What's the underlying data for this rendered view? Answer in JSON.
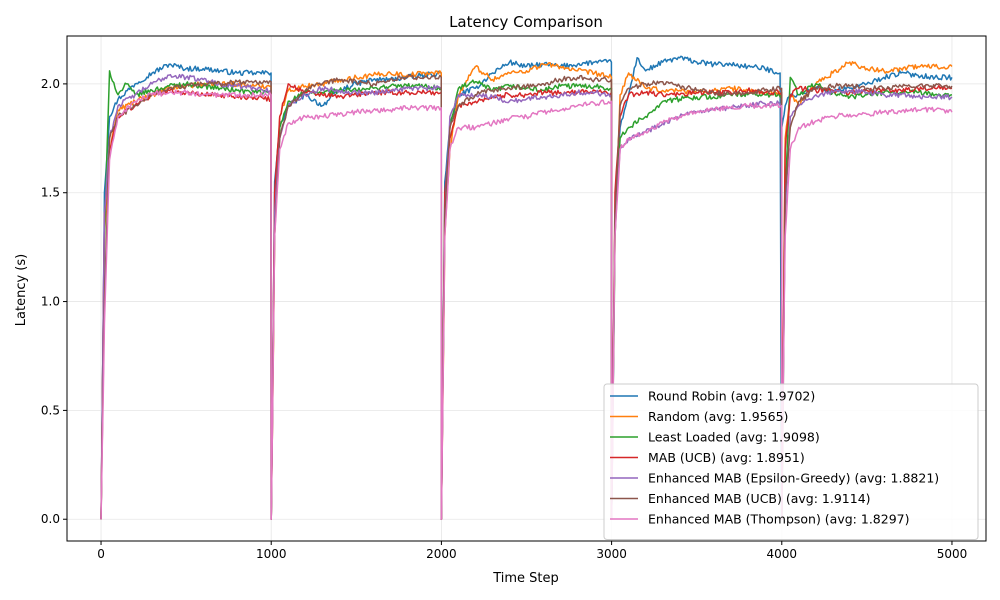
{
  "chart_data": {
    "type": "line",
    "title": "Latency Comparison",
    "xlabel": "Time Step",
    "ylabel": "Latency (s)",
    "xlim": [
      -200,
      5200
    ],
    "ylim": [
      -0.1,
      2.22
    ],
    "xticks": [
      0,
      1000,
      2000,
      3000,
      4000,
      5000
    ],
    "yticks": [
      0.0,
      0.5,
      1.0,
      1.5,
      2.0
    ],
    "xtick_labels": [
      "0",
      "1000",
      "2000",
      "3000",
      "4000",
      "5000"
    ],
    "ytick_labels": [
      "0.0",
      "0.5",
      "1.0",
      "1.5",
      "2.0"
    ],
    "grid": true,
    "legend_position": "lower-right",
    "series": [
      {
        "name": "Round Robin (avg: 1.9702)",
        "color": "#1f77b4",
        "x": [
          0,
          20,
          50,
          100,
          200,
          300,
          400,
          500,
          600,
          700,
          800,
          900,
          999,
          1000,
          1020,
          1050,
          1100,
          1200,
          1300,
          1400,
          1500,
          1600,
          1700,
          1800,
          1900,
          1999,
          2000,
          2020,
          2050,
          2100,
          2200,
          2300,
          2400,
          2500,
          2600,
          2700,
          2800,
          2900,
          2999,
          3000,
          3020,
          3050,
          3100,
          3150,
          3200,
          3300,
          3400,
          3500,
          3600,
          3700,
          3800,
          3900,
          3990,
          3999,
          4000,
          4020,
          4050,
          4100,
          4200,
          4300,
          4400,
          4500,
          4600,
          4700,
          4800,
          4900,
          5000
        ],
        "y": [
          0.0,
          1.5,
          1.85,
          1.93,
          2.0,
          2.05,
          2.09,
          2.07,
          2.07,
          2.06,
          2.05,
          2.05,
          2.05,
          0.0,
          1.55,
          1.8,
          1.9,
          1.95,
          1.9,
          1.97,
          2.0,
          2.02,
          2.02,
          2.03,
          2.04,
          2.05,
          0.0,
          1.55,
          1.8,
          1.95,
          1.98,
          2.05,
          2.1,
          2.08,
          2.09,
          2.08,
          2.09,
          2.1,
          2.1,
          0.0,
          1.4,
          1.8,
          1.95,
          2.12,
          2.06,
          2.1,
          2.12,
          2.1,
          2.09,
          2.09,
          2.08,
          2.07,
          2.05,
          0.0,
          1.8,
          1.9,
          1.95,
          1.95,
          1.98,
          1.97,
          1.98,
          2.0,
          2.03,
          2.05,
          2.04,
          2.03,
          2.03
        ]
      },
      {
        "name": "Random (avg: 1.9565)",
        "color": "#ff7f0e",
        "x": [
          0,
          20,
          50,
          100,
          200,
          300,
          400,
          500,
          600,
          700,
          800,
          900,
          999,
          1000,
          1020,
          1050,
          1100,
          1200,
          1300,
          1400,
          1500,
          1600,
          1700,
          1800,
          1900,
          1999,
          2000,
          2020,
          2050,
          2100,
          2200,
          2300,
          2400,
          2500,
          2600,
          2700,
          2800,
          2900,
          2999,
          3000,
          3020,
          3050,
          3100,
          3200,
          3300,
          3400,
          3500,
          3600,
          3700,
          3800,
          3900,
          3999,
          4000,
          4020,
          4050,
          4100,
          4200,
          4300,
          4400,
          4500,
          4600,
          4700,
          4800,
          4900,
          5000
        ],
        "y": [
          0.0,
          1.3,
          1.7,
          1.88,
          1.92,
          1.95,
          1.98,
          1.99,
          2.0,
          2.0,
          2.0,
          1.99,
          1.99,
          0.0,
          1.3,
          1.85,
          1.97,
          1.99,
          2.0,
          2.02,
          2.03,
          2.04,
          2.05,
          2.04,
          2.05,
          2.05,
          0.0,
          1.3,
          1.7,
          1.95,
          2.08,
          2.02,
          2.05,
          2.06,
          2.09,
          2.08,
          2.06,
          2.05,
          2.03,
          0.0,
          1.3,
          1.95,
          2.05,
          1.98,
          1.97,
          1.97,
          1.96,
          1.97,
          1.98,
          1.97,
          1.96,
          1.96,
          0.0,
          1.75,
          1.95,
          1.9,
          2.0,
          2.05,
          2.1,
          2.07,
          2.06,
          2.07,
          2.08,
          2.08,
          2.08
        ]
      },
      {
        "name": "Least Loaded (avg: 1.9098)",
        "color": "#2ca02c",
        "x": [
          0,
          20,
          50,
          100,
          150,
          200,
          300,
          400,
          500,
          600,
          700,
          800,
          900,
          999,
          1000,
          1020,
          1050,
          1100,
          1200,
          1300,
          1400,
          1500,
          1600,
          1700,
          1800,
          1900,
          1999,
          2000,
          2020,
          2050,
          2100,
          2200,
          2300,
          2400,
          2500,
          2600,
          2700,
          2800,
          2900,
          2999,
          3000,
          3020,
          3050,
          3100,
          3200,
          3300,
          3400,
          3500,
          3600,
          3700,
          3800,
          3900,
          3999,
          4000,
          4020,
          4050,
          4100,
          4200,
          4300,
          4400,
          4500,
          4600,
          4700,
          4800,
          4900,
          5000
        ],
        "y": [
          0.0,
          1.3,
          2.06,
          1.95,
          2.0,
          1.95,
          1.97,
          1.99,
          2.0,
          1.99,
          1.98,
          1.97,
          1.96,
          1.96,
          0.0,
          1.4,
          1.8,
          1.92,
          1.96,
          1.96,
          1.97,
          1.97,
          1.98,
          1.99,
          1.99,
          1.99,
          1.98,
          0.0,
          1.4,
          1.8,
          1.98,
          2.01,
          1.97,
          1.99,
          1.98,
          1.97,
          1.99,
          1.99,
          1.99,
          1.98,
          0.0,
          1.3,
          1.75,
          1.8,
          1.85,
          1.92,
          1.93,
          1.94,
          1.94,
          1.95,
          1.95,
          1.95,
          1.95,
          0.0,
          1.5,
          2.03,
          1.95,
          2.0,
          1.96,
          1.94,
          1.95,
          1.96,
          1.96,
          1.96,
          1.95,
          1.95
        ]
      },
      {
        "name": "MAB (UCB) (avg: 1.8951)",
        "color": "#d62728",
        "x": [
          0,
          20,
          50,
          100,
          200,
          300,
          400,
          500,
          600,
          700,
          800,
          900,
          999,
          1000,
          1020,
          1050,
          1100,
          1200,
          1300,
          1400,
          1500,
          1600,
          1700,
          1800,
          1900,
          1999,
          2000,
          2020,
          2050,
          2100,
          2200,
          2300,
          2400,
          2500,
          2600,
          2700,
          2800,
          2900,
          2999,
          3000,
          3020,
          3050,
          3100,
          3200,
          3300,
          3400,
          3500,
          3600,
          3700,
          3800,
          3900,
          3999,
          4000,
          4020,
          4050,
          4100,
          4200,
          4300,
          4400,
          4500,
          4600,
          4700,
          4800,
          4900,
          5000
        ],
        "y": [
          0.0,
          1.4,
          1.7,
          1.85,
          1.9,
          1.95,
          1.97,
          1.96,
          1.95,
          1.95,
          1.94,
          1.94,
          1.93,
          0.0,
          1.5,
          1.85,
          2.0,
          1.96,
          1.95,
          1.94,
          1.95,
          1.96,
          1.96,
          1.96,
          1.96,
          1.96,
          0.0,
          1.5,
          1.75,
          1.9,
          1.92,
          1.94,
          1.95,
          1.95,
          1.96,
          1.96,
          1.96,
          1.97,
          1.96,
          0.0,
          1.5,
          1.85,
          1.95,
          1.96,
          1.95,
          1.95,
          1.96,
          1.96,
          1.96,
          1.97,
          1.96,
          1.96,
          0.0,
          1.7,
          1.95,
          1.98,
          1.97,
          1.97,
          1.96,
          1.97,
          1.97,
          1.97,
          1.98,
          1.98,
          1.98
        ]
      },
      {
        "name": "Enhanced MAB (Epsilon-Greedy) (avg: 1.8821)",
        "color": "#9467bd",
        "x": [
          0,
          20,
          50,
          100,
          200,
          300,
          400,
          500,
          600,
          700,
          800,
          900,
          999,
          1000,
          1020,
          1050,
          1100,
          1200,
          1300,
          1400,
          1500,
          1600,
          1700,
          1800,
          1900,
          1999,
          2000,
          2020,
          2050,
          2100,
          2200,
          2300,
          2400,
          2500,
          2600,
          2700,
          2800,
          2900,
          2999,
          3000,
          3020,
          3050,
          3100,
          3200,
          3300,
          3400,
          3500,
          3600,
          3700,
          3800,
          3900,
          3999,
          4000,
          4020,
          4050,
          4100,
          4200,
          4300,
          4400,
          4500,
          4600,
          4700,
          4800,
          4900,
          5000
        ],
        "y": [
          0.0,
          1.4,
          1.75,
          1.9,
          1.95,
          2.0,
          2.04,
          2.03,
          2.02,
          2.0,
          1.99,
          1.98,
          1.97,
          0.0,
          1.4,
          1.75,
          1.9,
          1.95,
          1.98,
          1.97,
          1.96,
          1.96,
          1.97,
          1.98,
          1.98,
          1.98,
          0.0,
          1.4,
          1.85,
          1.95,
          1.95,
          1.94,
          1.92,
          1.93,
          1.94,
          1.95,
          1.96,
          1.96,
          1.95,
          0.0,
          1.4,
          1.7,
          1.75,
          1.78,
          1.82,
          1.85,
          1.87,
          1.88,
          1.89,
          1.9,
          1.91,
          1.91,
          0.0,
          1.4,
          1.85,
          1.9,
          1.95,
          1.96,
          1.97,
          1.96,
          1.95,
          1.95,
          1.94,
          1.94,
          1.94
        ]
      },
      {
        "name": "Enhanced MAB (UCB) (avg: 1.9114)",
        "color": "#8c564b",
        "x": [
          0,
          20,
          50,
          100,
          200,
          300,
          400,
          500,
          600,
          700,
          800,
          900,
          999,
          1000,
          1020,
          1050,
          1100,
          1200,
          1300,
          1400,
          1500,
          1600,
          1700,
          1800,
          1900,
          1999,
          2000,
          2020,
          2050,
          2100,
          2200,
          2300,
          2400,
          2500,
          2600,
          2700,
          2800,
          2900,
          2999,
          3000,
          3020,
          3050,
          3100,
          3200,
          3300,
          3400,
          3500,
          3600,
          3700,
          3800,
          3900,
          3999,
          4000,
          4020,
          4050,
          4100,
          4200,
          4300,
          4400,
          4500,
          4600,
          4700,
          4800,
          4900,
          5000
        ],
        "y": [
          0.0,
          1.0,
          1.75,
          1.85,
          1.9,
          1.95,
          1.98,
          1.99,
          2.0,
          2.0,
          2.01,
          2.01,
          2.01,
          0.0,
          1.3,
          1.75,
          1.9,
          1.97,
          2.0,
          2.02,
          2.01,
          2.0,
          2.02,
          2.03,
          2.03,
          2.03,
          0.0,
          1.4,
          1.8,
          1.9,
          1.95,
          1.97,
          1.98,
          1.99,
          2.0,
          2.02,
          2.03,
          2.02,
          2.02,
          0.0,
          1.4,
          1.9,
          1.98,
          2.0,
          2.01,
          1.99,
          1.97,
          1.96,
          1.95,
          1.96,
          1.97,
          1.98,
          0.0,
          1.5,
          1.8,
          1.92,
          1.98,
          1.99,
          1.99,
          1.98,
          1.98,
          1.99,
          1.99,
          1.99,
          1.99
        ]
      },
      {
        "name": "Enhanced MAB (Thompson) (avg: 1.8297)",
        "color": "#e377c2",
        "x": [
          0,
          20,
          50,
          100,
          200,
          300,
          400,
          500,
          600,
          700,
          800,
          900,
          999,
          1000,
          1020,
          1050,
          1100,
          1200,
          1300,
          1400,
          1500,
          1600,
          1700,
          1800,
          1900,
          1999,
          2000,
          2020,
          2050,
          2100,
          2200,
          2300,
          2400,
          2500,
          2600,
          2700,
          2800,
          2900,
          2999,
          3000,
          3020,
          3050,
          3100,
          3200,
          3300,
          3400,
          3500,
          3600,
          3700,
          3800,
          3900,
          3999,
          4000,
          4020,
          4050,
          4100,
          4200,
          4300,
          4400,
          4500,
          4600,
          4700,
          4800,
          4900,
          5000
        ],
        "y": [
          0.0,
          0.9,
          1.65,
          1.85,
          1.92,
          1.95,
          1.96,
          1.96,
          1.95,
          1.95,
          1.95,
          1.95,
          1.95,
          0.0,
          1.3,
          1.7,
          1.82,
          1.85,
          1.85,
          1.86,
          1.87,
          1.88,
          1.88,
          1.89,
          1.89,
          1.89,
          0.0,
          1.3,
          1.7,
          1.8,
          1.8,
          1.82,
          1.84,
          1.85,
          1.87,
          1.88,
          1.9,
          1.91,
          1.92,
          0.0,
          1.3,
          1.7,
          1.75,
          1.78,
          1.82,
          1.85,
          1.87,
          1.88,
          1.89,
          1.9,
          1.9,
          1.9,
          0.0,
          1.3,
          1.7,
          1.8,
          1.83,
          1.85,
          1.86,
          1.86,
          1.87,
          1.87,
          1.88,
          1.88,
          1.87
        ]
      }
    ]
  }
}
